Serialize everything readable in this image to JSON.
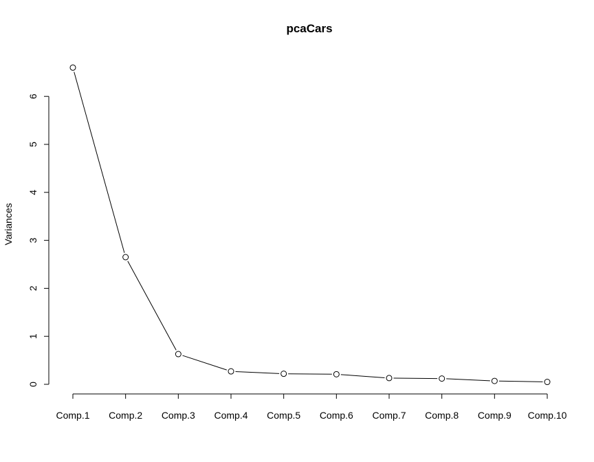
{
  "chart_data": {
    "type": "line",
    "title": "pcaCars",
    "xlabel": "",
    "ylabel": "Variances",
    "categories": [
      "Comp.1",
      "Comp.2",
      "Comp.3",
      "Comp.4",
      "Comp.5",
      "Comp.6",
      "Comp.7",
      "Comp.8",
      "Comp.9",
      "Comp.10"
    ],
    "values": [
      6.6,
      2.65,
      0.63,
      0.27,
      0.22,
      0.21,
      0.13,
      0.12,
      0.07,
      0.05
    ],
    "y_ticks": [
      "0",
      "1",
      "2",
      "3",
      "4",
      "5",
      "6"
    ],
    "ylim": [
      0,
      6.6
    ],
    "grid": false,
    "legend": "none",
    "markers": "open-circle",
    "line_color": "#000000"
  }
}
